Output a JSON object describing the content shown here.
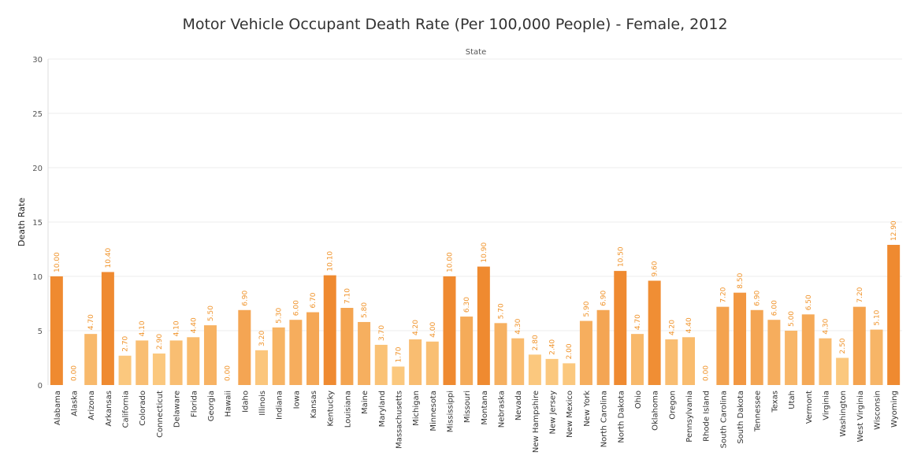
{
  "chart_data": {
    "type": "bar",
    "title": "Motor Vehicle Occupant Death Rate (Per 100,000 People) - Female, 2012",
    "column_header": "State",
    "ylabel": "Death Rate",
    "ylim": [
      0,
      30
    ],
    "yticks": [
      0,
      5,
      10,
      15,
      20,
      25,
      30
    ],
    "grid": true,
    "categories": [
      "Alabama",
      "Alaska",
      "Arizona",
      "Arkansas",
      "California",
      "Colorado",
      "Connecticut",
      "Delaware",
      "Florida",
      "Georgia",
      "Hawaii",
      "Idaho",
      "Illinois",
      "Indiana",
      "Iowa",
      "Kansas",
      "Kentucky",
      "Louisiana",
      "Maine",
      "Maryland",
      "Massachusetts",
      "Michigan",
      "Minnesota",
      "Mississippi",
      "Missouri",
      "Montana",
      "Nebraska",
      "Nevada",
      "New Hampshire",
      "New Jersey",
      "New Mexico",
      "New York",
      "North Carolina",
      "North Dakota",
      "Ohio",
      "Oklahoma",
      "Oregon",
      "Pennsylvania",
      "Rhode Island",
      "South Carolina",
      "South Dakota",
      "Tennessee",
      "Texas",
      "Utah",
      "Vermont",
      "Virginia",
      "Washington",
      "West Virginia",
      "Wisconsin",
      "Wyoming"
    ],
    "values": [
      10.0,
      0.0,
      4.7,
      10.4,
      2.7,
      4.1,
      2.9,
      4.1,
      4.4,
      5.5,
      0.0,
      6.9,
      3.2,
      5.3,
      6.0,
      6.7,
      10.1,
      7.1,
      5.8,
      3.7,
      1.7,
      4.2,
      4.0,
      10.0,
      6.3,
      10.9,
      5.7,
      4.3,
      2.8,
      2.4,
      2.0,
      5.9,
      6.9,
      10.5,
      4.7,
      9.6,
      4.2,
      4.4,
      0.0,
      7.2,
      8.5,
      6.9,
      6.0,
      5.0,
      6.5,
      4.3,
      2.5,
      7.2,
      5.1,
      12.9
    ],
    "value_labels": [
      "10.00",
      "0.00",
      "4.70",
      "10.40",
      "2.70",
      "4.10",
      "2.90",
      "4.10",
      "4.40",
      "5.50",
      "0.00",
      "6.90",
      "3.20",
      "5.30",
      "6.00",
      "6.70",
      "10.10",
      "7.10",
      "5.80",
      "3.70",
      "1.70",
      "4.20",
      "4.00",
      "10.00",
      "6.30",
      "10.90",
      "5.70",
      "4.30",
      "2.80",
      "2.40",
      "2.00",
      "5.90",
      "6.90",
      "10.50",
      "4.70",
      "9.60",
      "4.20",
      "4.40",
      "0.00",
      "7.20",
      "8.50",
      "6.90",
      "6.00",
      "5.00",
      "6.50",
      "4.30",
      "2.50",
      "7.20",
      "5.10",
      "12.90"
    ],
    "color_scale": {
      "low": "#fbc87e",
      "high": "#ef8a30",
      "label_color": "#f0932a"
    }
  }
}
